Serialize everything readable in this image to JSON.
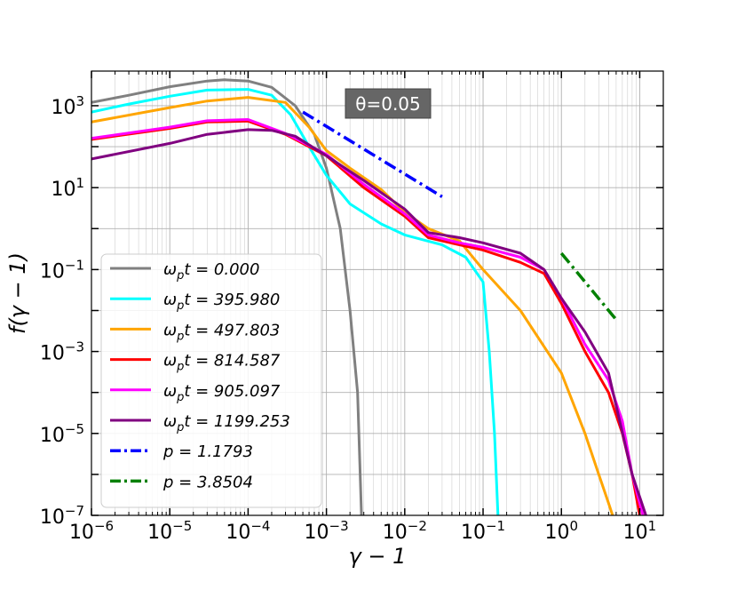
{
  "chart_data": {
    "type": "line",
    "xscale": "log",
    "yscale": "log",
    "xlim": [
      1e-06,
      20
    ],
    "ylim": [
      1e-07,
      7000
    ],
    "grid": true,
    "xlabel": "γ − 1",
    "ylabel": "f(γ − 1)",
    "annotation": "θ=0.05",
    "legend_position": "lower-left",
    "xticks": [
      {
        "value": 1e-06,
        "base": "10",
        "exp": "−6"
      },
      {
        "value": 1e-05,
        "base": "10",
        "exp": "−5"
      },
      {
        "value": 0.0001,
        "base": "10",
        "exp": "−4"
      },
      {
        "value": 0.001,
        "base": "10",
        "exp": "−3"
      },
      {
        "value": 0.01,
        "base": "10",
        "exp": "−2"
      },
      {
        "value": 0.1,
        "base": "10",
        "exp": "−1"
      },
      {
        "value": 1,
        "base": "10",
        "exp": "0"
      },
      {
        "value": 10,
        "base": "10",
        "exp": "1"
      }
    ],
    "yticks": [
      {
        "value": 1e-07,
        "base": "10",
        "exp": "−7"
      },
      {
        "value": 1e-05,
        "base": "10",
        "exp": "−5"
      },
      {
        "value": 0.001,
        "base": "10",
        "exp": "−3"
      },
      {
        "value": 0.1,
        "base": "10",
        "exp": "−1"
      },
      {
        "value": 10,
        "base": "10",
        "exp": "1"
      },
      {
        "value": 1000,
        "base": "10",
        "exp": "3"
      }
    ],
    "series": [
      {
        "name": "ω_p t = 0.000",
        "label_main": "ω",
        "label_sub": "p",
        "label_rest": "t = 0.000",
        "color": "#808080",
        "x": [
          1e-06,
          3e-06,
          1e-05,
          3e-05,
          5e-05,
          0.0001,
          0.0002,
          0.0004,
          0.0007,
          0.001,
          0.0015,
          0.002,
          0.0025,
          0.0028
        ],
        "y": [
          1200,
          1800,
          2900,
          4000,
          4300,
          4000,
          2800,
          1000,
          200,
          30,
          1,
          0.01,
          0.0001,
          1e-07
        ]
      },
      {
        "name": "ω_p t = 395.980",
        "label_main": "ω",
        "label_sub": "p",
        "label_rest": "t = 395.980",
        "color": "#00ffff",
        "x": [
          1e-06,
          3e-06,
          1e-05,
          3e-05,
          0.0001,
          0.0002,
          0.00035,
          0.0006,
          0.001,
          0.002,
          0.005,
          0.01,
          0.03,
          0.06,
          0.1,
          0.12,
          0.14,
          0.155
        ],
        "y": [
          700,
          1100,
          1700,
          2400,
          2500,
          1800,
          600,
          100,
          20,
          4,
          1.3,
          0.7,
          0.4,
          0.2,
          0.05,
          0.001,
          1e-05,
          1e-07
        ]
      },
      {
        "name": "ω_p t = 497.803",
        "label_main": "ω",
        "label_sub": "p",
        "label_rest": "t = 497.803",
        "color": "#ffa500",
        "x": [
          1e-06,
          1e-05,
          3e-05,
          0.0001,
          0.0003,
          0.0006,
          0.001,
          0.002,
          0.005,
          0.01,
          0.02,
          0.05,
          0.1,
          0.3,
          1,
          2,
          3,
          4,
          4.5
        ],
        "y": [
          400,
          900,
          1300,
          1600,
          1200,
          300,
          80,
          30,
          9,
          2.5,
          1,
          0.5,
          0.1,
          0.01,
          0.0003,
          1e-05,
          1e-06,
          2e-07,
          1e-07
        ]
      },
      {
        "name": "ω_p t = 814.587",
        "label_main": "ω",
        "label_sub": "p",
        "label_rest": "t = 814.587",
        "color": "#ff0000",
        "x": [
          1e-06,
          1e-05,
          3e-05,
          0.0001,
          0.0003,
          0.001,
          0.003,
          0.01,
          0.02,
          0.05,
          0.1,
          0.3,
          0.6,
          1,
          2,
          4,
          6,
          8,
          10
        ],
        "y": [
          150,
          280,
          400,
          420,
          200,
          60,
          10,
          2,
          0.6,
          0.4,
          0.3,
          0.15,
          0.08,
          0.015,
          0.001,
          0.0001,
          1e-05,
          1e-06,
          1e-07
        ]
      },
      {
        "name": "ω_p t = 905.097",
        "label_main": "ω",
        "label_sub": "p",
        "label_rest": "t = 905.097",
        "color": "#ff00ff",
        "x": [
          1e-06,
          1e-05,
          3e-05,
          0.0001,
          0.0003,
          0.001,
          0.003,
          0.01,
          0.02,
          0.05,
          0.1,
          0.3,
          0.6,
          1,
          2,
          4,
          6,
          8,
          11
        ],
        "y": [
          160,
          300,
          430,
          460,
          210,
          65,
          12,
          2.3,
          0.7,
          0.45,
          0.35,
          0.2,
          0.1,
          0.02,
          0.0015,
          0.0002,
          2e-05,
          1e-06,
          1e-07
        ]
      },
      {
        "name": "ω_p t = 1199.253",
        "label_main": "ω",
        "label_sub": "p",
        "label_rest": "t = 1199.253",
        "color": "#800080",
        "x": [
          1e-06,
          1e-05,
          3e-05,
          0.0001,
          0.0002,
          0.0004,
          0.001,
          0.003,
          0.01,
          0.02,
          0.05,
          0.1,
          0.3,
          0.6,
          1,
          2,
          4,
          8,
          12
        ],
        "y": [
          50,
          120,
          200,
          260,
          250,
          180,
          60,
          15,
          3,
          0.8,
          0.6,
          0.45,
          0.25,
          0.1,
          0.02,
          0.003,
          0.0003,
          1e-06,
          1e-07
        ]
      },
      {
        "name": "p = 1.1793",
        "label_main": "p = 1.1793",
        "label_sub": "",
        "label_rest": "",
        "color": "#0000ff",
        "dash": "dashdot",
        "x": [
          0.0005,
          0.03
        ],
        "y": [
          700,
          6
        ]
      },
      {
        "name": "p = 3.8504",
        "label_main": "p = 3.8504",
        "label_sub": "",
        "label_rest": "",
        "color": "#008000",
        "dash": "dashdot",
        "x": [
          1,
          5
        ],
        "y": [
          0.25,
          0.006
        ]
      }
    ]
  }
}
